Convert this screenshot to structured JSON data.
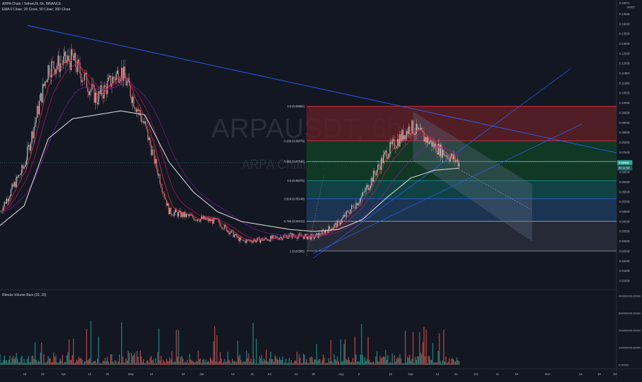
{
  "header": {
    "symbol_title": "ARPA Chain / TetherUS, 6h, BINANCE",
    "indicators_line": "EMA 9 Close, 20 Close, 50 Close, 200 Close",
    "volume_indicator": "Rboula Volume Bars (10, 20)"
  },
  "watermark": {
    "ticker": "ARPAUSDT, 6h",
    "name": "ARPA Chain / TetherUS"
  },
  "price_axis": {
    "unit": "USDT",
    "top_value": "0.15071",
    "ticks": [
      "0.14500",
      "0.14000",
      "0.13500",
      "0.13000",
      "0.12500",
      "0.12000",
      "0.11500",
      "0.11000",
      "0.10500",
      "0.10000",
      "0.09500",
      "0.09000",
      "0.08500",
      "0.08000",
      "0.07500",
      "0.07000",
      "0.06500",
      "0.06000",
      "0.05500",
      "0.05000",
      "0.04500",
      "0.04000",
      "0.03500",
      "0.03000",
      "0.02500",
      "0.02000",
      "0.01500",
      "0.01000"
    ],
    "last_price_label": "0.06966",
    "countdown_label": "00:11:50"
  },
  "volume_axis": {
    "ticks": [
      "400000000.00000",
      "300000000.00000",
      "200000000.00000",
      "100000000.00000",
      "0.00000"
    ]
  },
  "time_axis": {
    "labels": [
      "15",
      "23",
      "Apr",
      "12",
      "20",
      "May",
      "10",
      "24",
      "Jun",
      "14",
      "22",
      "Jul",
      "12",
      "20",
      "Aug",
      "9",
      "23",
      "Sep",
      "13",
      "21",
      "Oct",
      "11",
      "19",
      "Nov",
      "15",
      "23",
      "De"
    ]
  },
  "fib_levels": [
    {
      "label": "0.0 (0.09834)",
      "value": 0.09834
    },
    {
      "label": "0.236 (0.08079)",
      "value": 0.08079
    },
    {
      "label": "0.382 (0.07040)",
      "value": 0.0704
    },
    {
      "label": "0.5 (0.06075)",
      "value": 0.06075
    },
    {
      "label": "0.618 (0.05148)",
      "value": 0.05148
    },
    {
      "label": "0.786 (0.04012)",
      "value": 0.04012
    },
    {
      "label": "1 (0.02505)",
      "value": 0.02505
    }
  ],
  "colors": {
    "background": "#131722",
    "candle_up": "#c8c8c8",
    "candle_down": "#e57373",
    "ema9": "#f23645",
    "ema20": "#c2185b",
    "ema50": "#7b1fa2",
    "ema200": "#d8d8d8",
    "trendline": "#2962ff",
    "fib_red": "#5d2026",
    "fib_green": "#123d26",
    "fib_teal": "#104a4a",
    "fib_blue": "#1d3a59",
    "fib_grey": "#2a2e39",
    "volume_up": "#26a69a",
    "volume_down": "#ef5350",
    "price_tag": "#26a69a"
  },
  "chart_data": {
    "type": "candlestick",
    "title": "ARPA Chain / TetherUS, 6h, BINANCE",
    "x": [
      "Mar 15",
      "Mar 23",
      "Apr 1",
      "Apr 12",
      "Apr 20",
      "May 1",
      "May 10",
      "May 24",
      "Jun 1",
      "Jun 14",
      "Jun 22",
      "Jul 1",
      "Jul 12",
      "Jul 20",
      "Aug 1",
      "Aug 9",
      "Aug 23",
      "Sep 1",
      "Sep 13",
      "Sep 21"
    ],
    "close_path": [
      0.045,
      0.068,
      0.118,
      0.122,
      0.102,
      0.117,
      0.088,
      0.045,
      0.042,
      0.04,
      0.03,
      0.031,
      0.033,
      0.032,
      0.039,
      0.053,
      0.075,
      0.088,
      0.078,
      0.0697
    ],
    "ema200_path": [
      0.038,
      0.048,
      0.082,
      0.092,
      0.094,
      0.096,
      0.094,
      0.07,
      0.055,
      0.045,
      0.04,
      0.038,
      0.036,
      0.035,
      0.036,
      0.041,
      0.052,
      0.062,
      0.066,
      0.067
    ],
    "ylim": [
      0.01,
      0.15071
    ],
    "last_price": 0.06966,
    "volume_ylim": [
      0,
      400000000
    ]
  }
}
